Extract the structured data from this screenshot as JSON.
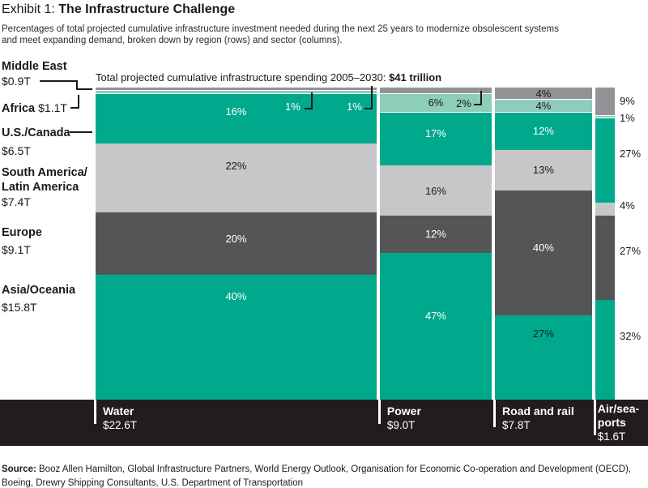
{
  "header": {
    "exhibit": "Exhibit 1: ",
    "title": "The Infrastructure Challenge",
    "subtitle1": "Percentages of total projected cumulative infrastructure investment needed during the next 25 years to modernize obsolescent systems",
    "subtitle2": "and meet expanding demand, broken down by region (rows) and sector (columns)."
  },
  "annotation": {
    "text": "Total projected cumulative infrastructure spending 2005–2030: ",
    "value": "$41 trillion"
  },
  "source": {
    "prefix": "Source: ",
    "line1": "Booz Allen Hamilton, Global Infrastructure Partners, World Energy Outlook, Organisation for Economic Co-operation and Development (OECD),",
    "line2": "Boeing, Drewry Shipping Consultants, U.S. Department of Transportation"
  },
  "chart_data": {
    "type": "marimekko_100pct_stacked_column",
    "title": "Exhibit 1: The Infrastructure Challenge",
    "note": "Column widths proportional to sector totals in $ trillions; segments are percent of each column",
    "grand_total": "$41 trillion",
    "regions": [
      {
        "name": "Middle East",
        "total": "$0.9T",
        "total_t": 0.9,
        "color": "#919396"
      },
      {
        "name": "Africa",
        "total": "$1.1T",
        "total_t": 1.1,
        "color": "#8fcdbb"
      },
      {
        "name": "U.S./Canada",
        "total": "$6.5T",
        "total_t": 6.5,
        "color": "#00a98b"
      },
      {
        "name": "South America/",
        "name2": "Latin America",
        "total": "$7.4T",
        "total_t": 7.4,
        "color": "#c5c7c9"
      },
      {
        "name": "Europe",
        "total": "$9.1T",
        "total_t": 9.1,
        "color": "#555558"
      },
      {
        "name": "Asia/Oceania",
        "total": "$15.8T",
        "total_t": 15.8,
        "color": "#00a98b"
      }
    ],
    "sectors": [
      {
        "name": "Water",
        "total": "$22.6T",
        "total_t": 22.6,
        "values": {
          "middle_east": 1,
          "africa": 1,
          "us_canada": 16,
          "south_america": 22,
          "europe": 20,
          "asia_oceania": 40
        },
        "pct": {
          "middle_east": "1%",
          "africa": "1%",
          "us_canada": "16%",
          "south_america": "22%",
          "europe": "20%",
          "asia_oceania": "40%"
        }
      },
      {
        "name": "Power",
        "total": "$9.0T",
        "total_t": 9.0,
        "values": {
          "middle_east": 2,
          "africa": 6,
          "us_canada": 17,
          "south_america": 16,
          "europe": 12,
          "asia_oceania": 47
        },
        "pct": {
          "middle_east": "2%",
          "africa": "6%",
          "us_canada": "17%",
          "south_america": "16%",
          "europe": "12%",
          "asia_oceania": "47%"
        }
      },
      {
        "name": "Road and rail",
        "total": "$7.8T",
        "total_t": 7.8,
        "values": {
          "middle_east": 4,
          "africa": 4,
          "us_canada": 12,
          "south_america": 13,
          "europe": 40,
          "asia_oceania": 27
        },
        "pct": {
          "middle_east": "4%",
          "africa": "4%",
          "us_canada": "12%",
          "south_america": "13%",
          "europe": "40%",
          "asia_oceania": "27%"
        }
      },
      {
        "name": "Air/sea-ports",
        "name_line1": "Air/sea-",
        "name_line2": "ports",
        "total": "$1.6T",
        "total_t": 1.6,
        "values": {
          "middle_east": 9,
          "africa": 1,
          "us_canada": 27,
          "south_america": 4,
          "europe": 27,
          "asia_oceania": 32
        },
        "pct": {
          "middle_east": "9%",
          "africa": "1%",
          "us_canada": "27%",
          "south_america": "4%",
          "europe": "27%",
          "asia_oceania": "32%"
        }
      }
    ]
  }
}
